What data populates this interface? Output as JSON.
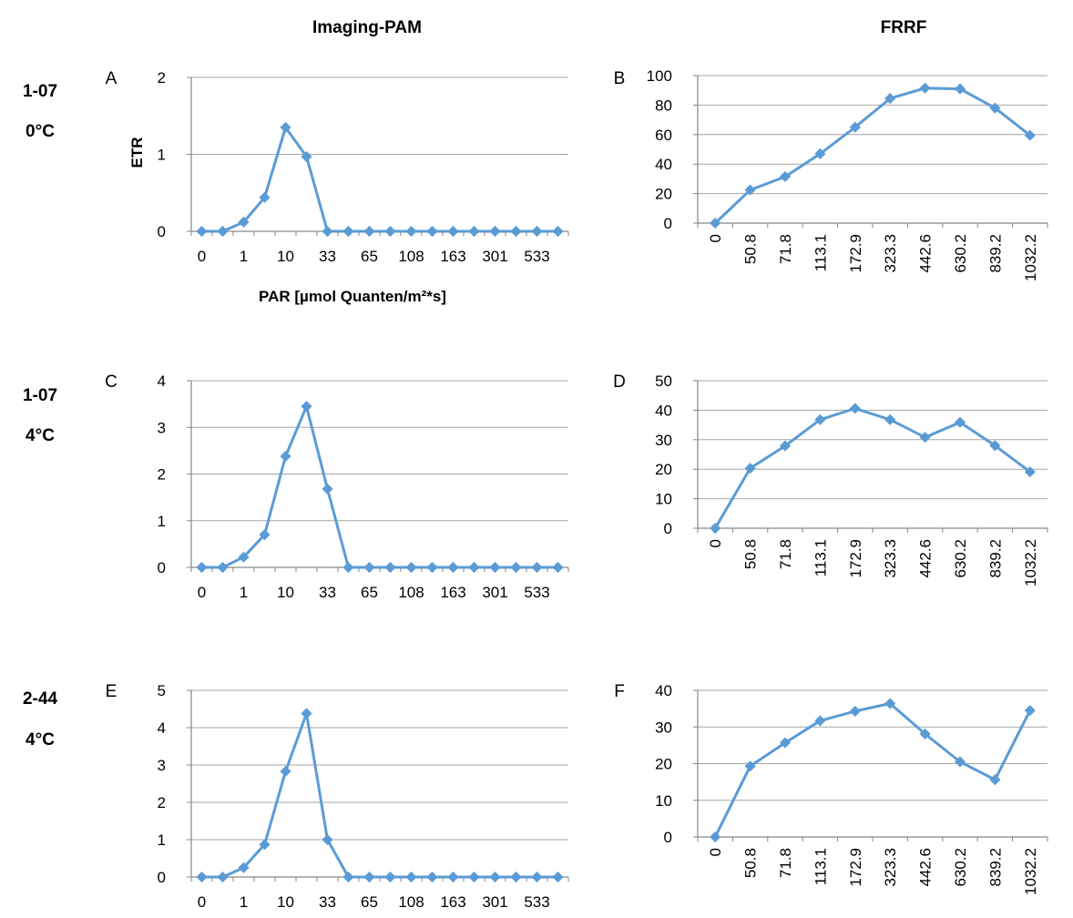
{
  "column_headers": [
    "Imaging-PAM",
    "FRRF"
  ],
  "row_labels": [
    {
      "sample": "1-07",
      "temp": "0°C"
    },
    {
      "sample": "1-07",
      "temp": "4°C"
    },
    {
      "sample": "2-44",
      "temp": "4°C"
    }
  ],
  "colors": {
    "series": "#5b9bd5",
    "grid": "#a6a6a6",
    "axis": "#868686"
  },
  "chart_data": [
    {
      "panel": "A",
      "type": "line",
      "xlabel": "PAR [µmol Quanten/m²*s]",
      "ylabel": "ETR",
      "ylim": [
        0,
        2
      ],
      "yticks": [
        0,
        1,
        2
      ],
      "grid": true,
      "categories": [
        "0",
        "",
        "1",
        "",
        "10",
        "",
        "33",
        "",
        "65",
        "",
        "108",
        "",
        "163",
        "",
        "301",
        "",
        "533",
        ""
      ],
      "values": [
        0,
        0,
        0.12,
        0.44,
        1.35,
        0.97,
        0,
        0,
        0,
        0,
        0,
        0,
        0,
        0,
        0,
        0,
        0,
        0
      ]
    },
    {
      "panel": "B",
      "type": "line",
      "xlabel": "",
      "ylabel": "",
      "ylim": [
        0,
        100
      ],
      "yticks": [
        0,
        20,
        40,
        60,
        80,
        100
      ],
      "grid": true,
      "categories": [
        "0",
        "50.8",
        "71.8",
        "113.1",
        "172.9",
        "323.3",
        "442.6",
        "630.2",
        "839.2",
        "1032.2"
      ],
      "values": [
        0,
        22.5,
        31.5,
        47,
        65,
        84.5,
        91.5,
        91,
        78,
        59.5
      ]
    },
    {
      "panel": "C",
      "type": "line",
      "xlabel": "",
      "ylabel": "",
      "ylim": [
        0,
        4
      ],
      "yticks": [
        0,
        1,
        2,
        3,
        4
      ],
      "grid": true,
      "categories": [
        "0",
        "",
        "1",
        "",
        "10",
        "",
        "33",
        "",
        "65",
        "",
        "108",
        "",
        "163",
        "",
        "301",
        "",
        "533",
        ""
      ],
      "values": [
        0,
        0,
        0.22,
        0.7,
        2.38,
        3.45,
        1.68,
        0,
        0,
        0,
        0,
        0,
        0,
        0,
        0,
        0,
        0,
        0
      ]
    },
    {
      "panel": "D",
      "type": "line",
      "xlabel": "",
      "ylabel": "",
      "ylim": [
        0,
        50
      ],
      "yticks": [
        0,
        10,
        20,
        30,
        40,
        50
      ],
      "grid": true,
      "categories": [
        "0",
        "50.8",
        "71.8",
        "113.1",
        "172.9",
        "323.3",
        "442.6",
        "630.2",
        "839.2",
        "1032.2"
      ],
      "values": [
        0,
        20.3,
        27.9,
        36.8,
        40.6,
        36.8,
        30.8,
        35.9,
        28,
        19.1
      ]
    },
    {
      "panel": "E",
      "type": "line",
      "xlabel": "",
      "ylabel": "",
      "ylim": [
        0,
        5
      ],
      "yticks": [
        0,
        1,
        2,
        3,
        4,
        5
      ],
      "grid": true,
      "categories": [
        "0",
        "",
        "1",
        "",
        "10",
        "",
        "33",
        "",
        "65",
        "",
        "108",
        "",
        "163",
        "",
        "301",
        "",
        "533",
        ""
      ],
      "values": [
        0,
        0,
        0.25,
        0.87,
        2.83,
        4.38,
        1,
        0,
        0,
        0,
        0,
        0,
        0,
        0,
        0,
        0,
        0,
        0
      ]
    },
    {
      "panel": "F",
      "type": "line",
      "xlabel": "",
      "ylabel": "",
      "ylim": [
        0,
        40
      ],
      "yticks": [
        0,
        10,
        20,
        30,
        40
      ],
      "grid": true,
      "categories": [
        "0",
        "50.8",
        "71.8",
        "113.1",
        "172.9",
        "323.3",
        "442.6",
        "630.2",
        "839.2",
        "1032.2"
      ],
      "values": [
        0,
        19.3,
        25.7,
        31.7,
        34.3,
        36.4,
        28.1,
        20.5,
        15.6,
        34.5
      ]
    }
  ]
}
